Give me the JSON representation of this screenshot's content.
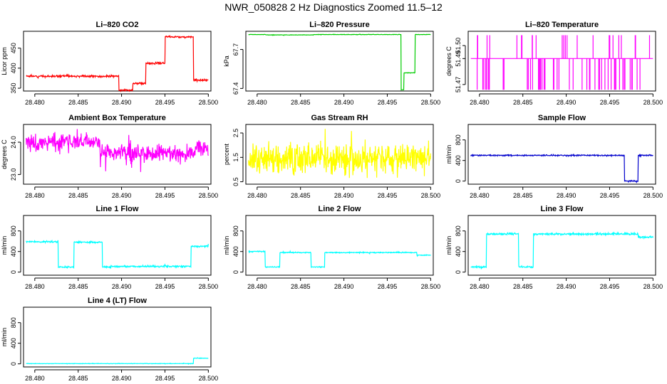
{
  "title": "NWR_050828  2 Hz Diagnostics Zoomed 11.5–12",
  "chart_data": [
    {
      "type": "line",
      "title": "Li–820 CO2",
      "ylabel": "Licor ppm",
      "color": "#ff0000",
      "noise": 1.2,
      "noise_seed": 3,
      "xlim": [
        28.4787,
        28.5003
      ],
      "ylim": [
        343,
        492
      ],
      "xticks": [
        28.48,
        28.485,
        28.49,
        28.495,
        28.5
      ],
      "xtick_labels": [
        "28.480",
        "28.485",
        "28.490",
        "28.495",
        "28.500"
      ],
      "yticks": [
        350,
        400,
        450
      ],
      "ytick_labels": [
        "350",
        "400",
        "450"
      ],
      "steps": [
        [
          28.479,
          380
        ],
        [
          28.4897,
          345
        ],
        [
          28.4913,
          362
        ],
        [
          28.4928,
          412
        ],
        [
          28.495,
          478
        ],
        [
          28.4983,
          370
        ],
        [
          28.5,
          370
        ]
      ]
    },
    {
      "type": "line",
      "title": "Li–820 Pressure",
      "ylabel": "kPa",
      "color": "#00cc00",
      "noise": 0.0008,
      "noise_seed": 5,
      "xlim": [
        28.4787,
        28.5003
      ],
      "ylim": [
        67.38,
        67.84
      ],
      "xticks": [
        28.48,
        28.485,
        28.49,
        28.495,
        28.5
      ],
      "xtick_labels": [
        "28.480",
        "28.485",
        "28.490",
        "28.495",
        "28.500"
      ],
      "yticks": [
        67.4,
        67.7
      ],
      "ytick_labels": [
        "67.4",
        "67.7"
      ],
      "steps": [
        [
          28.479,
          67.815
        ],
        [
          28.481,
          67.812
        ],
        [
          28.4865,
          67.815
        ],
        [
          28.4966,
          67.39
        ],
        [
          28.4969,
          67.52
        ],
        [
          28.4982,
          67.815
        ],
        [
          28.5,
          67.815
        ]
      ]
    },
    {
      "type": "line",
      "title": "Li–820 Temperature",
      "ylabel": "degrees C",
      "color": "#ff00ff",
      "noise": 0,
      "noise_seed": 7,
      "xlim": [
        28.4787,
        28.5003
      ],
      "ylim": [
        51.465,
        51.511
      ],
      "xticks": [
        28.48,
        28.485,
        28.49,
        28.495,
        28.5
      ],
      "xtick_labels": [
        "28.480",
        "28.485",
        "28.490",
        "28.495",
        "28.500"
      ],
      "yticks": [
        51.47,
        51.49,
        51.5
      ],
      "ytick_labels": [
        "51.47",
        "51.49",
        "51.50"
      ],
      "steps": [
        [
          28.479,
          51.49
        ],
        [
          28.5,
          51.49
        ]
      ],
      "spikes": {
        "high": 51.508,
        "low": 51.466,
        "count": 80,
        "seed": 11
      }
    },
    {
      "type": "line",
      "title": "Ambient Box Temperature",
      "ylabel": "degrees C",
      "color": "#ff00ff",
      "noise": 0.13,
      "noise_seed": 13,
      "xlim": [
        28.4787,
        28.5003
      ],
      "ylim": [
        22.7,
        24.55
      ],
      "xticks": [
        28.48,
        28.485,
        28.49,
        28.495,
        28.5
      ],
      "xtick_labels": [
        "28.480",
        "28.485",
        "28.490",
        "28.495",
        "28.500"
      ],
      "yticks": [
        23.0,
        24.0
      ],
      "ytick_labels": [
        "23.0",
        "24.0"
      ],
      "steps": [
        [
          28.479,
          24.0
        ],
        [
          28.4875,
          23.65
        ],
        [
          28.4985,
          23.85
        ],
        [
          28.5,
          23.85
        ]
      ]
    },
    {
      "type": "line",
      "title": "Gas Stream RH",
      "ylabel": "percent",
      "color": "#ffff00",
      "noise": 0.28,
      "noise_seed": 17,
      "xlim": [
        28.4787,
        28.5003
      ],
      "ylim": [
        0.4,
        2.85
      ],
      "xticks": [
        28.48,
        28.485,
        28.49,
        28.495,
        28.5
      ],
      "xtick_labels": [
        "28.480",
        "28.485",
        "28.490",
        "28.495",
        "28.500"
      ],
      "yticks": [
        0.5,
        1.5,
        2.5
      ],
      "ytick_labels": [
        "0.5",
        "1.5",
        "2.5"
      ],
      "steps": [
        [
          28.479,
          1.45
        ],
        [
          28.5,
          1.45
        ]
      ]
    },
    {
      "type": "line",
      "title": "Sample Flow",
      "ylabel": "ml/min",
      "color": "#0000cc",
      "noise": 6,
      "noise_seed": 19,
      "xlim": [
        28.4787,
        28.5003
      ],
      "ylim": [
        -60,
        1100
      ],
      "xticks": [
        28.48,
        28.485,
        28.49,
        28.495,
        28.5
      ],
      "xtick_labels": [
        "28.480",
        "28.485",
        "28.490",
        "28.495",
        "28.500"
      ],
      "yticks": [
        0,
        400,
        800
      ],
      "ytick_labels": [
        "0",
        "400",
        "800"
      ],
      "steps": [
        [
          28.479,
          500
        ],
        [
          28.4967,
          0
        ],
        [
          28.4983,
          500
        ],
        [
          28.5,
          500
        ]
      ]
    },
    {
      "type": "line",
      "title": "Line 1 Flow",
      "ylabel": "ml/min",
      "color": "#00ffff",
      "noise": 8,
      "noise_seed": 23,
      "xlim": [
        28.4787,
        28.5003
      ],
      "ylim": [
        -60,
        1100
      ],
      "xticks": [
        28.48,
        28.485,
        28.49,
        28.495,
        28.5
      ],
      "xtick_labels": [
        "28.480",
        "28.485",
        "28.490",
        "28.495",
        "28.500"
      ],
      "yticks": [
        0,
        400,
        800
      ],
      "ytick_labels": [
        "0",
        "400",
        "800"
      ],
      "steps": [
        [
          28.479,
          590
        ],
        [
          28.4827,
          100
        ],
        [
          28.4845,
          580
        ],
        [
          28.4878,
          100
        ],
        [
          28.4888,
          110
        ],
        [
          28.498,
          500
        ],
        [
          28.5,
          540
        ]
      ]
    },
    {
      "type": "line",
      "title": "Line 2 Flow",
      "ylabel": "ml/min",
      "color": "#00ffff",
      "noise": 5,
      "noise_seed": 29,
      "xlim": [
        28.4787,
        28.5003
      ],
      "ylim": [
        -60,
        1100
      ],
      "xticks": [
        28.48,
        28.485,
        28.49,
        28.495,
        28.5
      ],
      "xtick_labels": [
        "28.480",
        "28.485",
        "28.490",
        "28.495",
        "28.500"
      ],
      "yticks": [
        0,
        400,
        800
      ],
      "ytick_labels": [
        "0",
        "400",
        "800"
      ],
      "steps": [
        [
          28.479,
          400
        ],
        [
          28.4809,
          100
        ],
        [
          28.4826,
          380
        ],
        [
          28.4862,
          100
        ],
        [
          28.4878,
          380
        ],
        [
          28.4984,
          330
        ],
        [
          28.5,
          330
        ]
      ]
    },
    {
      "type": "line",
      "title": "Line 3 Flow",
      "ylabel": "ml/min",
      "color": "#00ffff",
      "noise": 9,
      "noise_seed": 31,
      "xlim": [
        28.4787,
        28.5003
      ],
      "ylim": [
        -60,
        1100
      ],
      "xticks": [
        28.48,
        28.485,
        28.49,
        28.495,
        28.5
      ],
      "xtick_labels": [
        "28.480",
        "28.485",
        "28.490",
        "28.495",
        "28.500"
      ],
      "yticks": [
        0,
        400,
        800
      ],
      "ytick_labels": [
        "0",
        "400",
        "800"
      ],
      "steps": [
        [
          28.479,
          100
        ],
        [
          28.4808,
          740
        ],
        [
          28.4845,
          100
        ],
        [
          28.4862,
          740
        ],
        [
          28.4983,
          680
        ],
        [
          28.5,
          680
        ]
      ]
    },
    {
      "type": "line",
      "title": "Line 4 (LT) Flow",
      "ylabel": "ml/min",
      "color": "#00ffff",
      "noise": 2,
      "noise_seed": 37,
      "xlim": [
        28.4787,
        28.5003
      ],
      "ylim": [
        -60,
        1100
      ],
      "xticks": [
        28.48,
        28.485,
        28.49,
        28.495,
        28.5
      ],
      "xtick_labels": [
        "28.480",
        "28.485",
        "28.490",
        "28.495",
        "28.500"
      ],
      "yticks": [
        0,
        400,
        800
      ],
      "ytick_labels": [
        "0",
        "400",
        "800"
      ],
      "steps": [
        [
          28.479,
          5
        ],
        [
          28.4983,
          110
        ],
        [
          28.5,
          110
        ]
      ]
    }
  ]
}
